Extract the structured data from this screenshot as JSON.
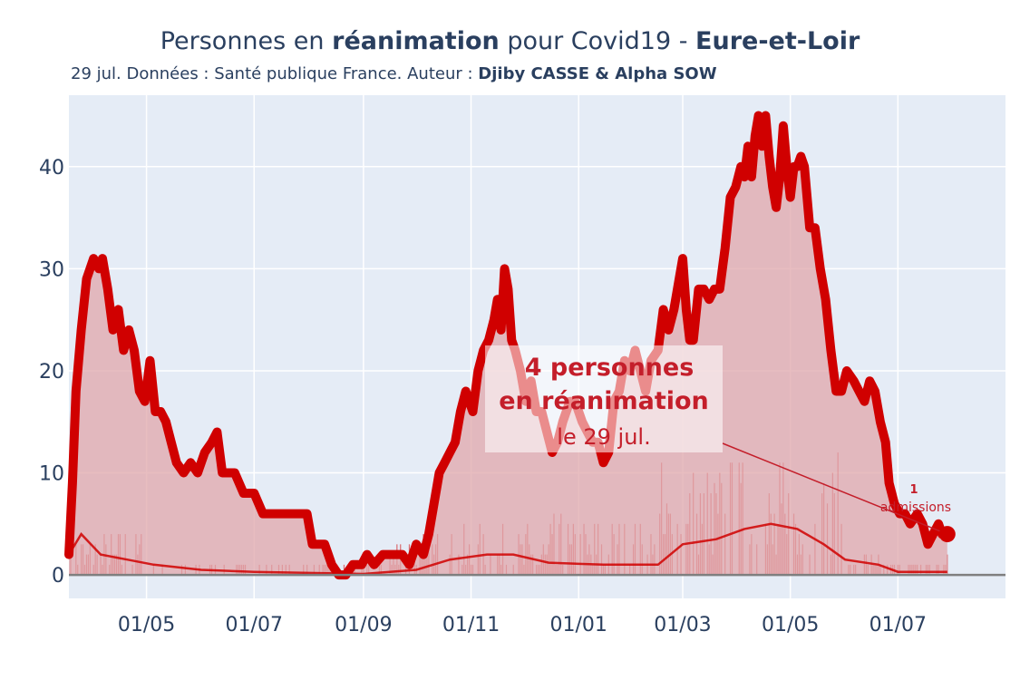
{
  "title": {
    "prefix": "Personnes en ",
    "bold1": "réanimation",
    "middle": " pour Covid19 - ",
    "bold2": "Eure-et-Loir"
  },
  "subtitle": {
    "text": "29 jul. Données : Santé publique France. Auteur : ",
    "authors": "Djiby CASSE & Alpha SOW"
  },
  "colors": {
    "plot_bg": "#e5ecf6",
    "line": "#d00000",
    "fill": "#e0a7ab",
    "zero_line": "#7f7f7f",
    "annotation_text": "#c41e2a"
  },
  "annotation_main": {
    "line1": "4 personnes",
    "line2": "en réanimation",
    "line3": "le 29 jul."
  },
  "annotation_admissions": {
    "value": "1",
    "label": "admissions"
  },
  "chart_data": {
    "type": "area",
    "title": "Personnes en réanimation pour Covid19 - Eure-et-Loir",
    "xlabel": "",
    "ylabel": "",
    "x_range": [
      "2020-03-18",
      "2021-08-31"
    ],
    "ylim": [
      -2.3,
      47
    ],
    "y_ticks": [
      0,
      10,
      20,
      30,
      40
    ],
    "x_ticks": [
      {
        "date": "2020-05-01",
        "label": "01/05"
      },
      {
        "date": "2020-07-01",
        "label": "01/07"
      },
      {
        "date": "2020-09-01",
        "label": "01/09"
      },
      {
        "date": "2020-11-01",
        "label": "01/11"
      },
      {
        "date": "2021-01-01",
        "label": "01/01"
      },
      {
        "date": "2021-03-01",
        "label": "01/03"
      },
      {
        "date": "2021-05-01",
        "label": "01/05"
      },
      {
        "date": "2021-07-01",
        "label": "01/07"
      }
    ],
    "grid": true,
    "legend": "none",
    "series": [
      {
        "type": "area",
        "points": [
          [
            "2020-03-18",
            2
          ],
          [
            "2020-03-20",
            9
          ],
          [
            "2020-03-22",
            18
          ],
          [
            "2020-03-25",
            24
          ],
          [
            "2020-03-28",
            29
          ],
          [
            "2020-04-01",
            31
          ],
          [
            "2020-04-04",
            30
          ],
          [
            "2020-04-06",
            31
          ],
          [
            "2020-04-09",
            28
          ],
          [
            "2020-04-12",
            24
          ],
          [
            "2020-04-15",
            26
          ],
          [
            "2020-04-18",
            22
          ],
          [
            "2020-04-21",
            24
          ],
          [
            "2020-04-24",
            22
          ],
          [
            "2020-04-27",
            18
          ],
          [
            "2020-04-30",
            17
          ],
          [
            "2020-05-03",
            21
          ],
          [
            "2020-05-06",
            16
          ],
          [
            "2020-05-09",
            16
          ],
          [
            "2020-05-12",
            15
          ],
          [
            "2020-05-15",
            13
          ],
          [
            "2020-05-18",
            11
          ],
          [
            "2020-05-22",
            10
          ],
          [
            "2020-05-26",
            11
          ],
          [
            "2020-05-30",
            10
          ],
          [
            "2020-06-03",
            12
          ],
          [
            "2020-06-07",
            13
          ],
          [
            "2020-06-10",
            14
          ],
          [
            "2020-06-13",
            10
          ],
          [
            "2020-06-20",
            10
          ],
          [
            "2020-06-25",
            8
          ],
          [
            "2020-07-01",
            8
          ],
          [
            "2020-07-06",
            6
          ],
          [
            "2020-07-15",
            6
          ],
          [
            "2020-07-25",
            6
          ],
          [
            "2020-07-31",
            6
          ],
          [
            "2020-08-03",
            3
          ],
          [
            "2020-08-10",
            3
          ],
          [
            "2020-08-14",
            1
          ],
          [
            "2020-08-18",
            0
          ],
          [
            "2020-08-22",
            0
          ],
          [
            "2020-08-26",
            1
          ],
          [
            "2020-08-31",
            1
          ],
          [
            "2020-09-03",
            2
          ],
          [
            "2020-09-07",
            1
          ],
          [
            "2020-09-12",
            2
          ],
          [
            "2020-09-18",
            2
          ],
          [
            "2020-09-23",
            2
          ],
          [
            "2020-09-27",
            1
          ],
          [
            "2020-10-01",
            3
          ],
          [
            "2020-10-05",
            2
          ],
          [
            "2020-10-08",
            4
          ],
          [
            "2020-10-11",
            7
          ],
          [
            "2020-10-14",
            10
          ],
          [
            "2020-10-17",
            11
          ],
          [
            "2020-10-20",
            12
          ],
          [
            "2020-10-23",
            13
          ],
          [
            "2020-10-26",
            16
          ],
          [
            "2020-10-29",
            18
          ],
          [
            "2020-11-02",
            16
          ],
          [
            "2020-11-05",
            20
          ],
          [
            "2020-11-08",
            22
          ],
          [
            "2020-11-11",
            23
          ],
          [
            "2020-11-14",
            25
          ],
          [
            "2020-11-16",
            27
          ],
          [
            "2020-11-18",
            24
          ],
          [
            "2020-11-20",
            30
          ],
          [
            "2020-11-22",
            28
          ],
          [
            "2020-11-24",
            23
          ],
          [
            "2020-11-26",
            22
          ],
          [
            "2020-11-29",
            20
          ],
          [
            "2020-12-02",
            17
          ],
          [
            "2020-12-05",
            19
          ],
          [
            "2020-12-08",
            16
          ],
          [
            "2020-12-11",
            16
          ],
          [
            "2020-12-14",
            14
          ],
          [
            "2020-12-17",
            12
          ],
          [
            "2020-12-20",
            13
          ],
          [
            "2020-12-23",
            15
          ],
          [
            "2020-12-27",
            17
          ],
          [
            "2020-12-30",
            17
          ],
          [
            "2021-01-03",
            15
          ],
          [
            "2021-01-06",
            14
          ],
          [
            "2021-01-09",
            13
          ],
          [
            "2021-01-12",
            13
          ],
          [
            "2021-01-15",
            11
          ],
          [
            "2021-01-18",
            12
          ],
          [
            "2021-01-21",
            17
          ],
          [
            "2021-01-24",
            18
          ],
          [
            "2021-01-27",
            21
          ],
          [
            "2021-01-30",
            20
          ],
          [
            "2021-02-02",
            22
          ],
          [
            "2021-02-05",
            20
          ],
          [
            "2021-02-08",
            18
          ],
          [
            "2021-02-11",
            21
          ],
          [
            "2021-02-15",
            22
          ],
          [
            "2021-02-18",
            26
          ],
          [
            "2021-02-21",
            24
          ],
          [
            "2021-02-24",
            26
          ],
          [
            "2021-02-27",
            29
          ],
          [
            "2021-03-01",
            31
          ],
          [
            "2021-03-03",
            26
          ],
          [
            "2021-03-05",
            23
          ],
          [
            "2021-03-07",
            23
          ],
          [
            "2021-03-10",
            28
          ],
          [
            "2021-03-13",
            28
          ],
          [
            "2021-03-16",
            27
          ],
          [
            "2021-03-19",
            28
          ],
          [
            "2021-03-22",
            28
          ],
          [
            "2021-03-25",
            32
          ],
          [
            "2021-03-28",
            37
          ],
          [
            "2021-03-31",
            38
          ],
          [
            "2021-04-03",
            40
          ],
          [
            "2021-04-05",
            39
          ],
          [
            "2021-04-07",
            42
          ],
          [
            "2021-04-09",
            39
          ],
          [
            "2021-04-11",
            43
          ],
          [
            "2021-04-13",
            45
          ],
          [
            "2021-04-15",
            42
          ],
          [
            "2021-04-17",
            45
          ],
          [
            "2021-04-19",
            41
          ],
          [
            "2021-04-21",
            38
          ],
          [
            "2021-04-23",
            36
          ],
          [
            "2021-04-25",
            39
          ],
          [
            "2021-04-27",
            44
          ],
          [
            "2021-04-29",
            40
          ],
          [
            "2021-05-01",
            37
          ],
          [
            "2021-05-03",
            40
          ],
          [
            "2021-05-05",
            40
          ],
          [
            "2021-05-07",
            41
          ],
          [
            "2021-05-09",
            40
          ],
          [
            "2021-05-12",
            34
          ],
          [
            "2021-05-15",
            34
          ],
          [
            "2021-05-18",
            30
          ],
          [
            "2021-05-21",
            27
          ],
          [
            "2021-05-24",
            22
          ],
          [
            "2021-05-27",
            18
          ],
          [
            "2021-05-30",
            18
          ],
          [
            "2021-06-02",
            20
          ],
          [
            "2021-06-06",
            19
          ],
          [
            "2021-06-09",
            18
          ],
          [
            "2021-06-12",
            17
          ],
          [
            "2021-06-15",
            19
          ],
          [
            "2021-06-18",
            18
          ],
          [
            "2021-06-21",
            15
          ],
          [
            "2021-06-24",
            13
          ],
          [
            "2021-06-26",
            9
          ],
          [
            "2021-06-29",
            7
          ],
          [
            "2021-07-02",
            6
          ],
          [
            "2021-07-05",
            6
          ],
          [
            "2021-07-08",
            5
          ],
          [
            "2021-07-12",
            6
          ],
          [
            "2021-07-15",
            5
          ],
          [
            "2021-07-18",
            3
          ],
          [
            "2021-07-21",
            4
          ],
          [
            "2021-07-24",
            5
          ],
          [
            "2021-07-26",
            4
          ],
          [
            "2021-07-29",
            4
          ]
        ]
      },
      {
        "type": "line",
        "points": [
          [
            "2020-03-18",
            2
          ],
          [
            "2020-03-25",
            4
          ],
          [
            "2020-04-05",
            2
          ],
          [
            "2020-04-20",
            1.5
          ],
          [
            "2020-05-05",
            1
          ],
          [
            "2020-06-01",
            0.5
          ],
          [
            "2020-07-01",
            0.3
          ],
          [
            "2020-08-01",
            0.2
          ],
          [
            "2020-09-01",
            0.1
          ],
          [
            "2020-10-01",
            0.5
          ],
          [
            "2020-10-20",
            1.5
          ],
          [
            "2020-11-10",
            2
          ],
          [
            "2020-11-25",
            2
          ],
          [
            "2020-12-15",
            1.2
          ],
          [
            "2021-01-15",
            1
          ],
          [
            "2021-02-15",
            1
          ],
          [
            "2021-03-01",
            3
          ],
          [
            "2021-03-20",
            3.5
          ],
          [
            "2021-04-05",
            4.5
          ],
          [
            "2021-04-20",
            5
          ],
          [
            "2021-05-05",
            4.5
          ],
          [
            "2021-05-20",
            3
          ],
          [
            "2021-06-01",
            1.5
          ],
          [
            "2021-06-20",
            1
          ],
          [
            "2021-07-01",
            0.3
          ],
          [
            "2021-07-15",
            0.3
          ],
          [
            "2021-07-29",
            0.3
          ]
        ]
      },
      {
        "type": "bar",
        "x_start": "2020-03-18",
        "x_end": "2021-07-29",
        "values_by_period": [
          {
            "from": "2020-03-18",
            "to": "2020-05-01",
            "max": 5
          },
          {
            "from": "2020-05-01",
            "to": "2020-09-15",
            "max": 1
          },
          {
            "from": "2020-09-15",
            "to": "2020-12-15",
            "max": 5
          },
          {
            "from": "2020-12-15",
            "to": "2021-02-15",
            "max": 6
          },
          {
            "from": "2021-02-15",
            "to": "2021-05-31",
            "max": 12
          },
          {
            "from": "2021-05-31",
            "to": "2021-07-29",
            "max": 2
          }
        ]
      }
    ],
    "end_marker": {
      "date": "2021-07-29",
      "value": 4
    },
    "annotations": [
      {
        "text": "4 personnes en réanimation le 29 jul."
      },
      {
        "text": "1 admissions"
      }
    ]
  }
}
